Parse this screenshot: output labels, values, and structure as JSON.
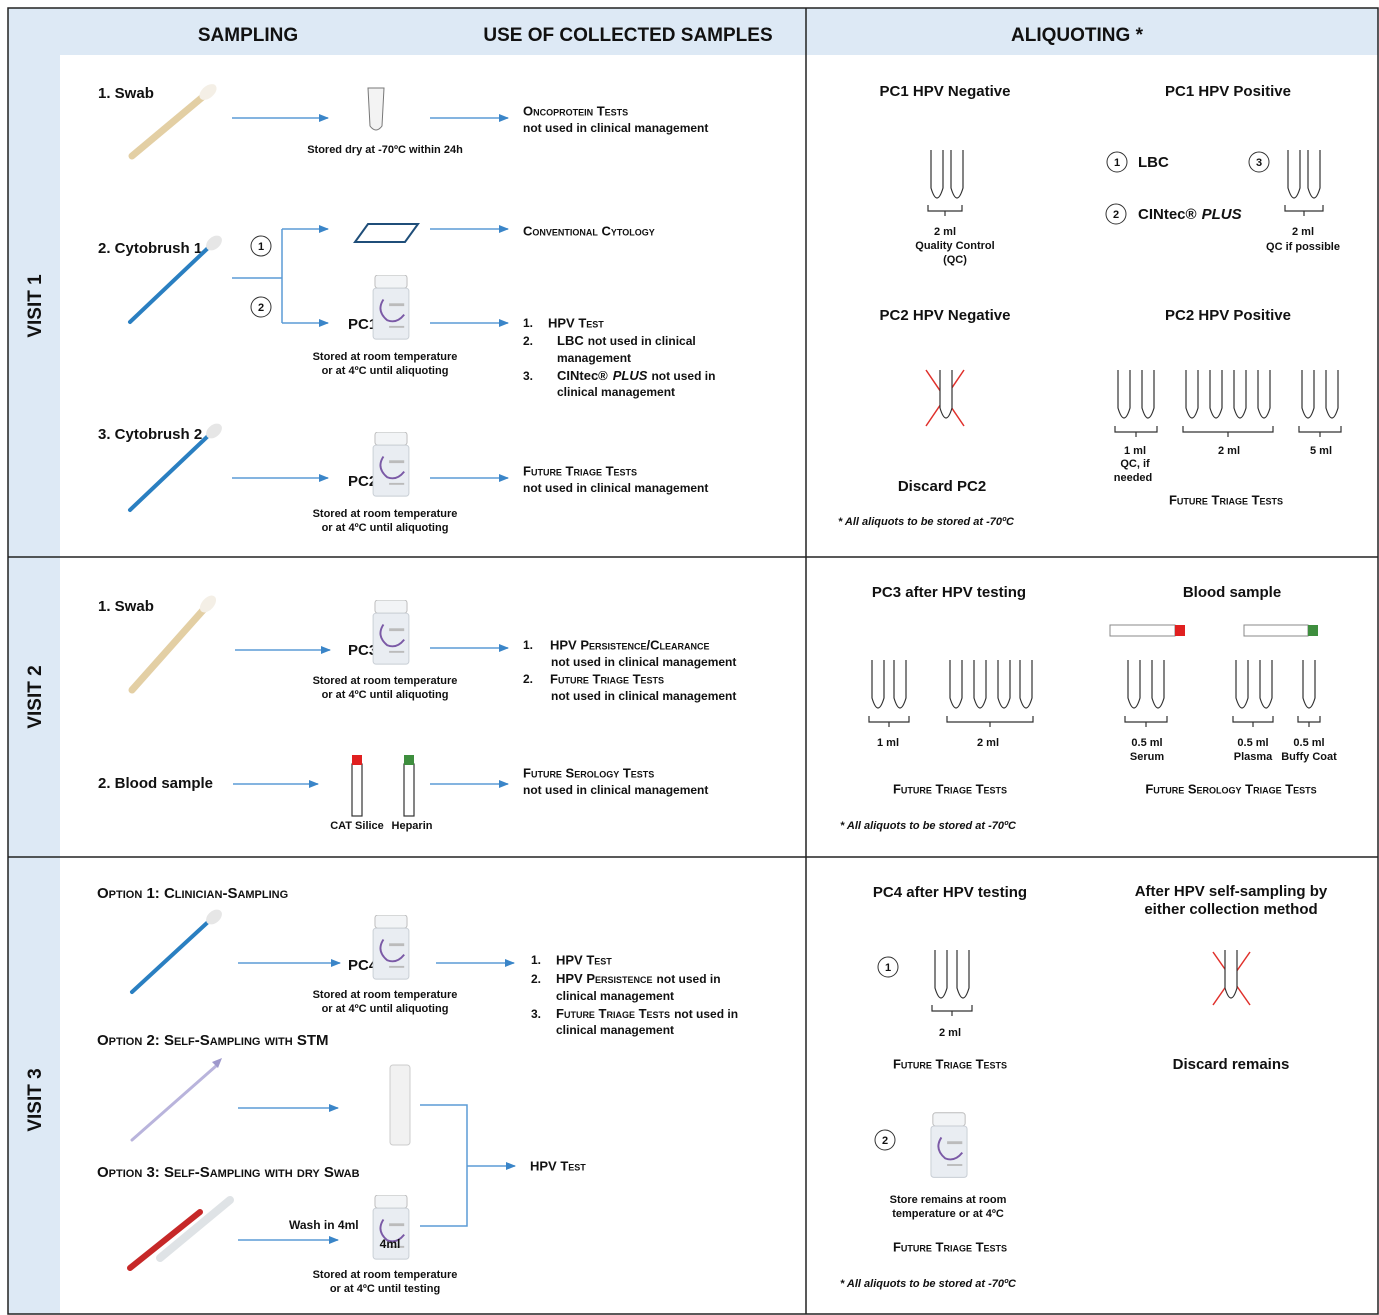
{
  "header": {
    "sampling": "SAMPLING",
    "use": "USE OF COLLECTED SAMPLES",
    "aliquoting": "ALIQUOTING *"
  },
  "visit1": {
    "label": "VISIT 1",
    "swab": {
      "title": "1. Swab",
      "storage": "Stored dry at -70ºC within 24h",
      "use": "Oncoprotein Tests",
      "note": "not used in clinical management"
    },
    "cytobrush1": {
      "title": "2. Cytobrush 1",
      "branches": [
        "1",
        "2"
      ],
      "vial": "PC1",
      "storage": [
        "Stored at room temperature",
        "or at 4ºC until aliquoting"
      ],
      "conventional": "Conventional Cytology",
      "uses": [
        {
          "number": "1.",
          "name": "HPV Test"
        },
        {
          "number": "2.",
          "name": "LBC",
          "note": [
            "not used in clinical",
            "management"
          ]
        },
        {
          "number": "3.",
          "name": "CINtec®",
          "emphasis": "PLUS",
          "note": [
            "not used in",
            "clinical management"
          ]
        }
      ]
    },
    "cytobrush2": {
      "title": "3. Cytobrush 2",
      "vial": "PC2",
      "storage": [
        "Stored at room temperature",
        "or at 4ºC until aliquoting"
      ],
      "use": "Future Triage Tests",
      "note": "not used in clinical management"
    },
    "aliquoting": {
      "pc1_negative": {
        "title": "PC1 HPV Negative",
        "volume": "2 ml",
        "purpose": [
          "Quality Control",
          "(QC)"
        ]
      },
      "pc1_positive": {
        "title": "PC1 HPV Positive",
        "steps": [
          "1",
          "2",
          "3"
        ],
        "lbc": "LBC",
        "cintec": "CINtec®",
        "plus": "PLUS",
        "volume": "2 ml",
        "purpose": "QC if possible"
      },
      "pc2_negative": {
        "title": "PC2 HPV Negative",
        "action": "Discard PC2"
      },
      "pc2_positive": {
        "title": "PC2 HPV Positive",
        "volumes": [
          "1 ml",
          "2 ml",
          "5 ml"
        ],
        "purpose": [
          "QC, if",
          "needed"
        ],
        "use": "Future Triage Tests"
      },
      "footnote": "* All aliquots to be stored at -70ºC"
    }
  },
  "visit2": {
    "label": "VISIT 2",
    "swab": {
      "title": "1. Swab",
      "vial": "PC3",
      "storage": [
        "Stored at room temperature",
        "or at 4ºC until aliquoting"
      ],
      "uses": [
        {
          "number": "1.",
          "name": "HPV Persistence/Clearance",
          "note": "not used in clinical management"
        },
        {
          "number": "2.",
          "name": "Future Triage Tests",
          "note": "not used in clinical management"
        }
      ]
    },
    "blood": {
      "title": "2. Blood sample",
      "tubes": [
        "CAT Silice",
        "Heparin"
      ],
      "use": "Future Serology Tests",
      "note": "not used in clinical management"
    },
    "aliquoting": {
      "pc3": {
        "title": "PC3 after HPV testing",
        "volumes": [
          "1 ml",
          "2 ml"
        ],
        "use": "Future Triage Tests"
      },
      "blood": {
        "title": "Blood sample",
        "volumes": [
          "0.5 ml",
          "0.5 ml",
          "0.5 ml"
        ],
        "fractions": [
          "Serum",
          "Plasma",
          "Buffy Coat"
        ],
        "use": "Future Serology Triage Tests"
      },
      "footnote": "* All aliquots to be stored at -70ºC"
    }
  },
  "visit3": {
    "label": "VISIT 3",
    "option1": {
      "title": "Option 1: Clinician-Sampling",
      "vial": "PC4",
      "storage": [
        "Stored at room temperature",
        "or at 4ºC until aliquoting"
      ],
      "uses": [
        {
          "number": "1.",
          "name": "HPV Test"
        },
        {
          "number": "2.",
          "name": "HPV Persistence",
          "note": [
            "not used in",
            "clinical management"
          ]
        },
        {
          "number": "3.",
          "name": "Future Triage Tests",
          "note": [
            "not used in",
            "clinical management"
          ]
        }
      ]
    },
    "option2": {
      "title": "Option 2: Self-Sampling with STM"
    },
    "option3": {
      "title": "Option 3: Self-Sampling with dry Swab",
      "wash": "Wash in 4ml",
      "vial": "4ml",
      "storage": [
        "Stored at room temperature",
        "or at 4ºC until testing"
      ]
    },
    "test": "HPV Test",
    "aliquoting": {
      "pc4": {
        "title": "PC4 after HPV testing",
        "steps": [
          "1",
          "2"
        ],
        "volume": "2 ml",
        "use": "Future Triage Tests",
        "store": [
          "Store remains at room",
          "temperature or at 4ºC"
        ],
        "store_use": "Future Triage Tests"
      },
      "self": {
        "title": [
          "After HPV self-sampling by",
          "either collection method"
        ],
        "action": "Discard remains"
      },
      "footnote": "* All aliquots to be stored at -70ºC"
    }
  }
}
